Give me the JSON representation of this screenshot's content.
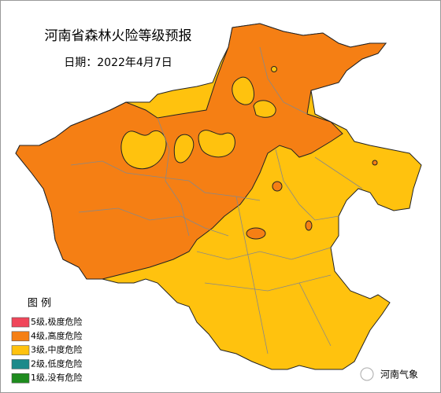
{
  "header": {
    "title": "河南省森林火险等级预报",
    "date": "日期：2022年4月7日"
  },
  "legend": {
    "title": "图 例",
    "items": [
      {
        "label": "5级,极度危险",
        "color": "#f0465a"
      },
      {
        "label": "4级,高度危险",
        "color": "#f57f14"
      },
      {
        "label": "3级,中度危险",
        "color": "#ffc20e"
      },
      {
        "label": "2级,低度危险",
        "color": "#1c8a8a"
      },
      {
        "label": "1级,没有危险",
        "color": "#1e8c1e"
      }
    ]
  },
  "watermark": "河南气象"
}
